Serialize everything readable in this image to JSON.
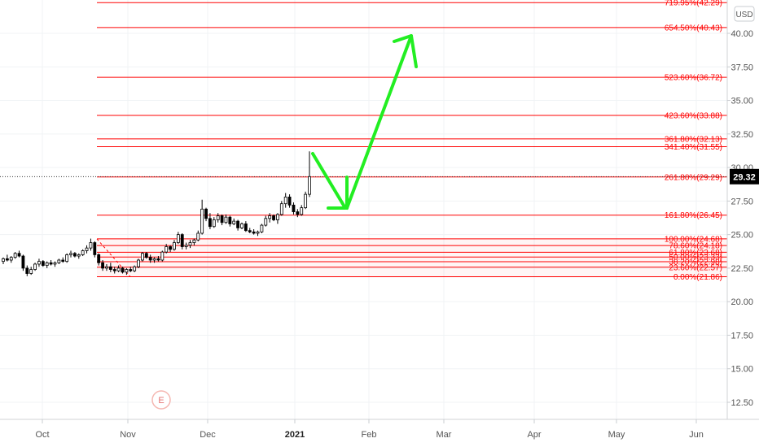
{
  "currency_label": "USD",
  "last_price_label": "29.32",
  "earnings_marker_label": "E",
  "colors": {
    "fib_line": "#ff0000",
    "arrow": "#22ee22",
    "candle_up": "#ffffff",
    "candle_down": "#000000",
    "grid": "#f0f3f5",
    "price_tag_bg": "#000000"
  },
  "chart_data": {
    "type": "candlestick",
    "ylim": [
      11.5,
      43.0
    ],
    "y_ticks": [
      "12.50",
      "15.00",
      "17.50",
      "20.00",
      "22.50",
      "25.00",
      "27.50",
      "30.00",
      "32.50",
      "35.00",
      "37.50",
      "40.00"
    ],
    "x_ticks": [
      "Oct",
      "Nov",
      "Dec",
      "2021",
      "Feb",
      "Mar",
      "Apr",
      "May",
      "Jun"
    ],
    "last_price": 29.32,
    "fib_levels": [
      {
        "label": "0.00%(21.86)",
        "value": 21.86
      },
      {
        "label": "23.60%(22.57)",
        "value": 22.57
      },
      {
        "label": "38.20%(22.98)",
        "value": 22.98
      },
      {
        "label": "50.00%(23.33)",
        "value": 23.33
      },
      {
        "label": "61.80%(23.68)",
        "value": 23.68
      },
      {
        "label": "78.60%(24.18)",
        "value": 24.18
      },
      {
        "label": "100.00%(24.68)",
        "value": 24.68
      },
      {
        "label": "161.80%(26.45)",
        "value": 26.45
      },
      {
        "label": "261.80%(29.29)",
        "value": 29.29
      },
      {
        "label": "341.40%(31.55)",
        "value": 31.55
      },
      {
        "label": "361.80%(32.13)",
        "value": 32.13
      },
      {
        "label": "423.60%(33.88)",
        "value": 33.88
      },
      {
        "label": "523.60%(36.72)",
        "value": 36.72
      },
      {
        "label": "654.50%(40.43)",
        "value": 40.43
      },
      {
        "label": "719.95%(42.29)",
        "value": 42.29
      }
    ],
    "candles": [
      [
        23.0,
        23.3,
        22.8,
        23.2
      ],
      [
        23.2,
        23.5,
        23.0,
        23.1
      ],
      [
        23.1,
        23.4,
        22.9,
        23.3
      ],
      [
        23.3,
        23.7,
        23.2,
        23.6
      ],
      [
        23.6,
        23.8,
        23.3,
        23.4
      ],
      [
        23.4,
        23.5,
        22.3,
        22.5
      ],
      [
        22.5,
        22.7,
        21.9,
        22.1
      ],
      [
        22.1,
        22.6,
        22.0,
        22.4
      ],
      [
        22.4,
        22.9,
        22.3,
        22.8
      ],
      [
        22.8,
        23.2,
        22.6,
        23.0
      ],
      [
        23.0,
        23.1,
        22.6,
        22.7
      ],
      [
        22.7,
        23.0,
        22.5,
        22.9
      ],
      [
        22.9,
        23.1,
        22.7,
        22.8
      ],
      [
        22.8,
        23.0,
        22.6,
        22.9
      ],
      [
        22.9,
        23.2,
        22.8,
        23.1
      ],
      [
        23.1,
        23.3,
        22.9,
        23.0
      ],
      [
        23.0,
        23.6,
        22.9,
        23.5
      ],
      [
        23.5,
        23.8,
        23.3,
        23.6
      ],
      [
        23.6,
        23.7,
        23.3,
        23.4
      ],
      [
        23.4,
        23.6,
        23.2,
        23.5
      ],
      [
        23.5,
        23.9,
        23.4,
        23.8
      ],
      [
        23.8,
        24.2,
        23.6,
        24.0
      ],
      [
        24.0,
        24.7,
        23.8,
        24.4
      ],
      [
        24.4,
        24.5,
        23.3,
        23.5
      ],
      [
        23.5,
        23.6,
        22.7,
        22.9
      ],
      [
        22.9,
        23.1,
        22.3,
        22.5
      ],
      [
        22.5,
        22.8,
        22.3,
        22.6
      ],
      [
        22.6,
        22.9,
        22.2,
        22.4
      ],
      [
        22.4,
        22.6,
        22.1,
        22.3
      ],
      [
        22.3,
        22.7,
        22.2,
        22.5
      ],
      [
        22.5,
        22.6,
        22.1,
        22.2
      ],
      [
        22.2,
        22.5,
        22.0,
        22.4
      ],
      [
        22.4,
        22.6,
        22.2,
        22.3
      ],
      [
        22.3,
        22.7,
        22.2,
        22.6
      ],
      [
        22.6,
        23.2,
        22.5,
        23.1
      ],
      [
        23.1,
        23.7,
        23.0,
        23.6
      ],
      [
        23.6,
        23.7,
        23.2,
        23.3
      ],
      [
        23.3,
        23.5,
        22.9,
        23.1
      ],
      [
        23.1,
        23.3,
        22.9,
        23.2
      ],
      [
        23.2,
        23.4,
        23.0,
        23.1
      ],
      [
        23.1,
        23.8,
        23.0,
        23.7
      ],
      [
        23.7,
        24.3,
        23.6,
        24.1
      ],
      [
        24.1,
        24.2,
        23.7,
        23.9
      ],
      [
        23.9,
        24.6,
        23.8,
        24.4
      ],
      [
        24.4,
        25.2,
        24.3,
        25.0
      ],
      [
        25.0,
        25.1,
        23.9,
        24.1
      ],
      [
        24.1,
        24.4,
        23.9,
        24.2
      ],
      [
        24.2,
        24.6,
        24.0,
        24.4
      ],
      [
        24.4,
        24.7,
        24.2,
        24.6
      ],
      [
        24.6,
        25.3,
        24.5,
        25.1
      ],
      [
        25.1,
        27.6,
        25.0,
        26.9
      ],
      [
        26.9,
        27.0,
        26.0,
        26.2
      ],
      [
        26.2,
        26.6,
        25.4,
        25.6
      ],
      [
        25.6,
        26.3,
        25.5,
        26.1
      ],
      [
        26.1,
        26.6,
        25.9,
        26.4
      ],
      [
        26.4,
        26.5,
        25.7,
        25.9
      ],
      [
        25.9,
        26.5,
        25.8,
        26.3
      ],
      [
        26.3,
        26.4,
        25.6,
        25.8
      ],
      [
        25.8,
        26.2,
        25.7,
        26.0
      ],
      [
        26.0,
        26.1,
        25.3,
        25.5
      ],
      [
        25.5,
        25.9,
        25.4,
        25.8
      ],
      [
        25.8,
        26.0,
        25.2,
        25.3
      ],
      [
        25.3,
        25.5,
        25.1,
        25.2
      ],
      [
        25.2,
        25.4,
        25.0,
        25.1
      ],
      [
        25.1,
        25.3,
        24.9,
        25.2
      ],
      [
        25.2,
        25.8,
        25.1,
        25.7
      ],
      [
        25.7,
        26.4,
        25.6,
        26.2
      ],
      [
        26.2,
        26.6,
        25.9,
        26.4
      ],
      [
        26.4,
        26.5,
        26.0,
        26.1
      ],
      [
        26.1,
        26.6,
        25.8,
        26.5
      ],
      [
        26.5,
        27.5,
        26.4,
        27.3
      ],
      [
        27.3,
        28.1,
        27.0,
        27.8
      ],
      [
        27.8,
        28.0,
        27.0,
        27.2
      ],
      [
        27.2,
        27.4,
        26.5,
        26.7
      ],
      [
        26.7,
        26.9,
        26.3,
        26.5
      ],
      [
        26.5,
        27.2,
        26.4,
        27.0
      ],
      [
        27.0,
        28.2,
        26.9,
        28.0
      ],
      [
        28.0,
        31.2,
        27.8,
        29.32
      ]
    ]
  }
}
